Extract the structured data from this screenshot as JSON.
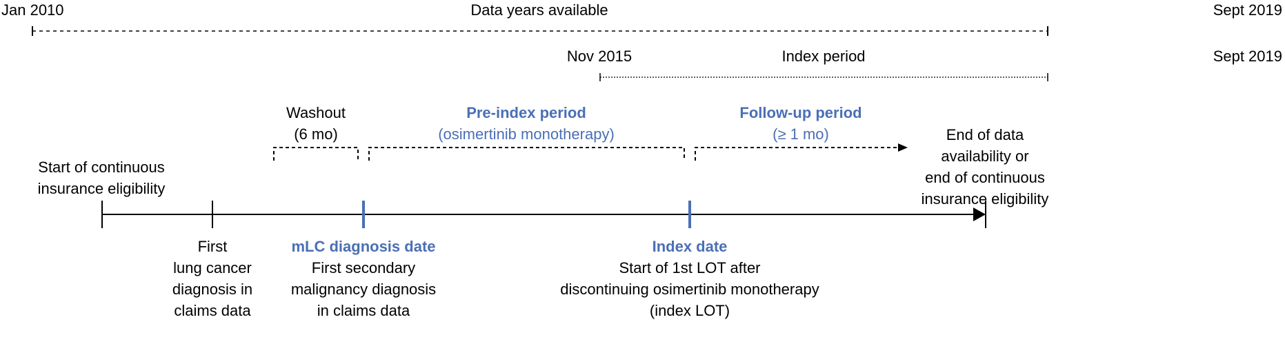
{
  "colors": {
    "accent": "#4A6FB5",
    "line": "#000000"
  },
  "data_years": {
    "start": "Jan 2010",
    "label": "Data years available",
    "end": "Sept 2019"
  },
  "index_period": {
    "start": "Nov 2015",
    "label": "Index period",
    "end": "Sept 2019"
  },
  "washout": {
    "line1": "Washout",
    "line2": "(6 mo)"
  },
  "pre_index": {
    "title": "Pre-index period",
    "subtitle": "(osimertinib monotherapy)"
  },
  "follow_up": {
    "title": "Follow-up period",
    "subtitle": "(≥ 1 mo)"
  },
  "end_of_data": [
    "End of data",
    "availability or",
    "end of continuous",
    "insurance eligibility"
  ],
  "start_eligibility": [
    "Start of continuous",
    "insurance eligibility"
  ],
  "first_lung_cancer": [
    "First",
    "lung cancer",
    "diagnosis in",
    "claims data"
  ],
  "mlc_diagnosis": {
    "title": "mLC diagnosis date",
    "lines": [
      "First secondary",
      "malignancy diagnosis",
      "in claims data"
    ]
  },
  "index_date": {
    "title": "Index date",
    "lines": [
      "Start of 1st LOT after",
      "discontinuing osimertinib monotherapy",
      "(index LOT)"
    ]
  }
}
